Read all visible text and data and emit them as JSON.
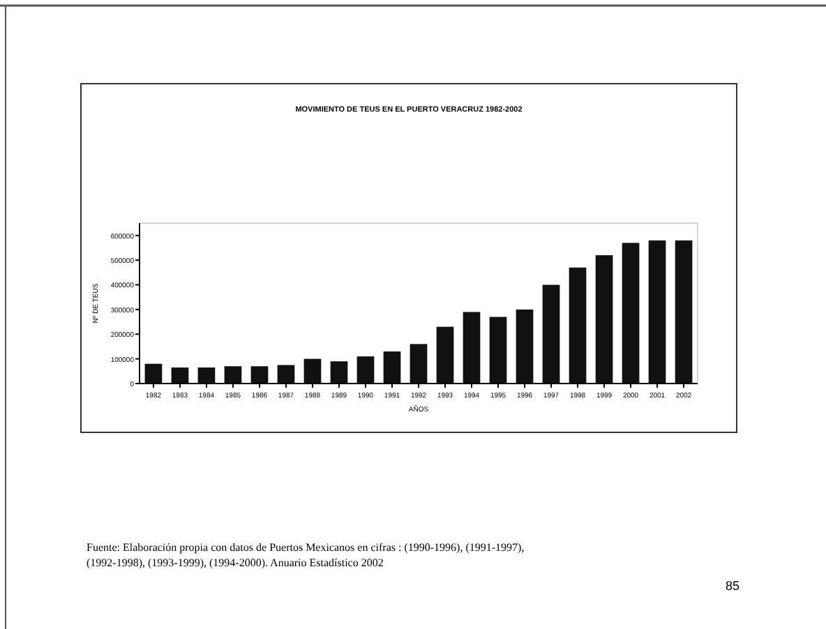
{
  "chart_data": {
    "type": "bar",
    "title": "MOVIMIENTO DE TEUS EN EL PUERTO VERACRUZ 1982-2002",
    "xlabel": "AÑOS",
    "ylabel": "Nº DE TEUS",
    "categories": [
      "1982",
      "1983",
      "1984",
      "1985",
      "1986",
      "1987",
      "1988",
      "1989",
      "1990",
      "1991",
      "1992",
      "1993",
      "1994",
      "1995",
      "1996",
      "1997",
      "1998",
      "1999",
      "2000",
      "2001",
      "2002"
    ],
    "values": [
      80000,
      65000,
      65000,
      70000,
      70000,
      75000,
      100000,
      90000,
      110000,
      130000,
      160000,
      230000,
      290000,
      270000,
      300000,
      400000,
      470000,
      520000,
      570000,
      580000,
      580000
    ],
    "color": "#111111",
    "ylim": [
      0,
      650000
    ],
    "yticks": [
      0,
      100000,
      200000,
      300000,
      400000,
      500000,
      600000
    ],
    "annotations": [
      "Fuente: Elaboración propia con datos de Puertos Mexicanos en cifras : (1990-1996), (1991-1997), (1992-1998), (1993-1999), (1994-2000). Anuario Estadístico 2002",
      "85"
    ]
  }
}
